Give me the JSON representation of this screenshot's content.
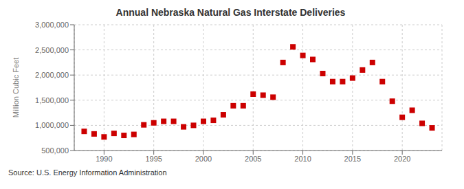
{
  "chart_data": {
    "type": "scatter",
    "title": "Annual Nebraska Natural Gas Interstate Deliveries",
    "ylabel": "Million Cubic Feet",
    "annotations": [
      "Source: U.S. Energy Information Administration"
    ],
    "x": [
      1988,
      1989,
      1990,
      1991,
      1992,
      1993,
      1994,
      1995,
      1996,
      1997,
      1998,
      1999,
      2000,
      2001,
      2002,
      2003,
      2004,
      2005,
      2006,
      2007,
      2008,
      2009,
      2010,
      2011,
      2012,
      2013,
      2014,
      2015,
      2016,
      2017,
      2018,
      2019,
      2020,
      2021,
      2022,
      2023
    ],
    "values": [
      880000,
      830000,
      770000,
      840000,
      800000,
      820000,
      1010000,
      1050000,
      1080000,
      1080000,
      970000,
      1000000,
      1080000,
      1100000,
      1210000,
      1390000,
      1390000,
      1620000,
      1600000,
      1560000,
      2250000,
      2560000,
      2390000,
      2310000,
      2030000,
      1870000,
      1870000,
      1940000,
      2100000,
      2250000,
      1870000,
      1480000,
      1160000,
      1300000,
      1040000,
      950000
    ],
    "color": "#cc0000",
    "marker": "square",
    "xlim": [
      1987,
      2024
    ],
    "xticks": [
      1990,
      1995,
      2000,
      2005,
      2010,
      2015,
      2020
    ],
    "ylim": [
      500000,
      3000000
    ],
    "yticks": [
      {
        "value": 500000,
        "label": "500,000"
      },
      {
        "value": 1000000,
        "label": "1,000,000"
      },
      {
        "value": 1500000,
        "label": "1,500,000"
      },
      {
        "value": 2000000,
        "label": "2,000,000"
      },
      {
        "value": 2500000,
        "label": "2,500,000"
      },
      {
        "value": 3000000,
        "label": "3,000,000"
      }
    ],
    "grid": true
  }
}
